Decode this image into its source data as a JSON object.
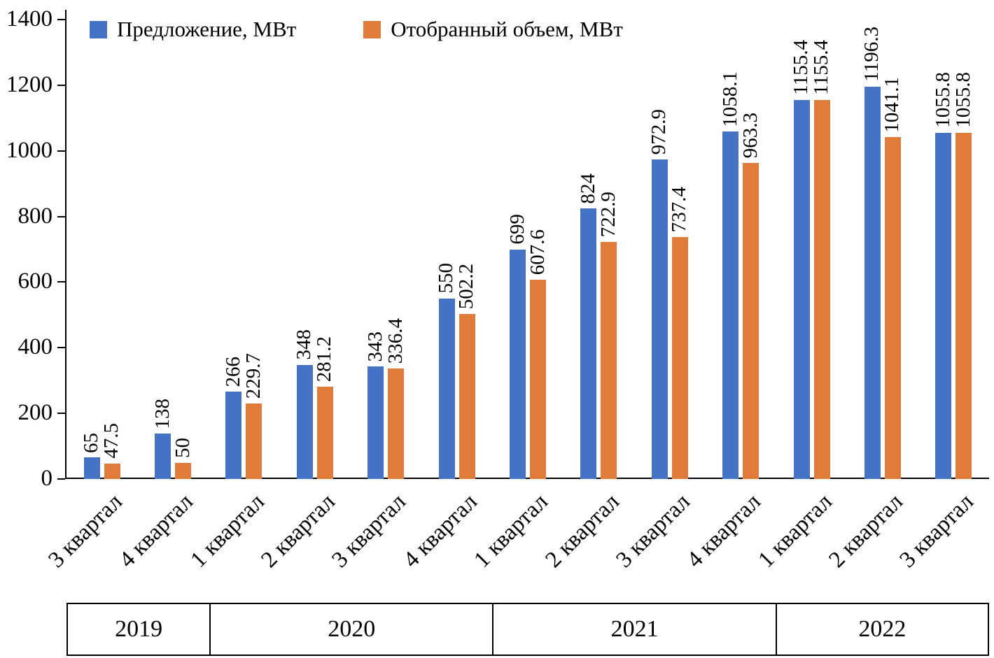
{
  "legend": [
    {
      "label": "Предложение, МВт",
      "color": "#4472C4"
    },
    {
      "label": "Отобранный объем, МВт",
      "color": "#E07B39"
    }
  ],
  "chart_data": {
    "type": "bar",
    "title": "",
    "xlabel": "",
    "ylabel": "",
    "ylim": [
      0,
      1400
    ],
    "yticks": [
      0,
      200,
      400,
      600,
      800,
      1000,
      1200,
      1400
    ],
    "grid": false,
    "legend_position": "top-left",
    "categories": [
      "3 квартал",
      "4 квартал",
      "1 квартал",
      "2 квартал",
      "3 квартал",
      "4 квартал",
      "1 квартал",
      "2 квартал",
      "3 квартал",
      "4 квартал",
      "1 квартал",
      "2 квартал",
      "3 квартал"
    ],
    "series": [
      {
        "name": "Предложение, МВт",
        "color": "#4472C4",
        "values": [
          65,
          138,
          266,
          348,
          343,
          550,
          699,
          824,
          972.9,
          1058.1,
          1155.4,
          1196.3,
          1055.8
        ]
      },
      {
        "name": "Отобранный объем, МВт",
        "color": "#E07B39",
        "values": [
          47.5,
          50,
          229.7,
          281.2,
          336.4,
          502.2,
          607.6,
          722.9,
          737.4,
          963.3,
          1155.4,
          1041.1,
          1055.8
        ]
      }
    ],
    "year_groups": [
      {
        "label": "2019",
        "span": 2
      },
      {
        "label": "2020",
        "span": 4
      },
      {
        "label": "2021",
        "span": 4
      },
      {
        "label": "2022",
        "span": 3
      }
    ]
  }
}
